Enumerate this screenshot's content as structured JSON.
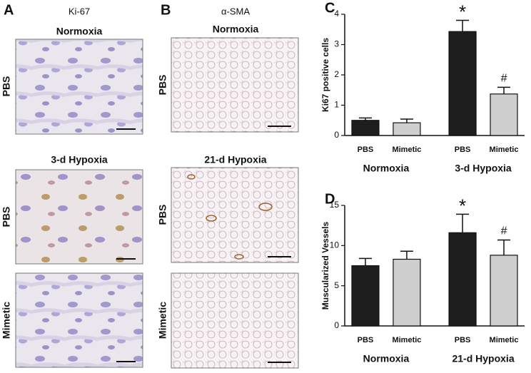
{
  "figure": {
    "panel_a": {
      "label": "A",
      "stain": "Ki-67",
      "sections": [
        {
          "title": "Normoxia",
          "rows": [
            "PBS"
          ]
        },
        {
          "title": "3-d Hypoxia",
          "rows": [
            "PBS",
            "Mimetic"
          ]
        }
      ]
    },
    "panel_b": {
      "label": "B",
      "stain": "α-SMA",
      "sections": [
        {
          "title": "Normoxia",
          "rows": [
            "PBS"
          ]
        },
        {
          "title": "21-d Hypoxia",
          "rows": [
            "PBS",
            "Mimetic"
          ]
        }
      ]
    }
  },
  "chart_data": [
    {
      "type": "bar",
      "panel_label": "C",
      "ylabel": "Ki67 positive cells",
      "categories": [
        "PBS",
        "Mimetic",
        "PBS",
        "Mimetic"
      ],
      "groups": [
        "Normoxia",
        "3-d Hypoxia"
      ],
      "values": [
        0.5,
        0.42,
        3.43,
        1.37
      ],
      "errors": [
        0.08,
        0.12,
        0.37,
        0.22
      ],
      "colors": [
        "#1e1e1e",
        "#cfcfcf",
        "#1e1e1e",
        "#cfcfcf"
      ],
      "annotations": [
        null,
        null,
        "*",
        "#"
      ],
      "ylim": [
        0,
        4
      ],
      "yticks": [
        0,
        1,
        2,
        3,
        4
      ]
    },
    {
      "type": "bar",
      "panel_label": "D",
      "ylabel": "Muscularized Vessels",
      "categories": [
        "PBS",
        "Mimetic",
        "PBS",
        "Mimetic"
      ],
      "groups": [
        "Normoxia",
        "21-d Hypoxia"
      ],
      "values": [
        7.5,
        8.3,
        11.6,
        8.8
      ],
      "errors": [
        0.9,
        1.0,
        2.3,
        1.9
      ],
      "colors": [
        "#1e1e1e",
        "#cfcfcf",
        "#1e1e1e",
        "#cfcfcf"
      ],
      "annotations": [
        null,
        null,
        "*",
        "#"
      ],
      "ylim": [
        0,
        15
      ],
      "yticks": [
        0,
        5,
        10,
        15
      ]
    }
  ]
}
